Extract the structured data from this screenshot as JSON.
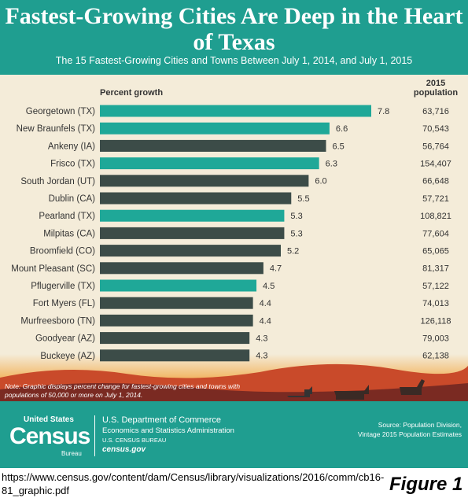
{
  "chart_data": {
    "type": "bar",
    "title": "Fastest-Growing Cities Are Deep in the Heart of Texas",
    "subtitle": "The 15 Fastest-Growing Cities and Towns Between July 1, 2014, and July 1, 2015",
    "categories": [
      "Georgetown (TX)",
      "New Braunfels (TX)",
      "Ankeny (IA)",
      "Frisco (TX)",
      "South Jordan (UT)",
      "Dublin (CA)",
      "Pearland (TX)",
      "Milpitas (CA)",
      "Broomfield (CO)",
      "Mount Pleasant (SC)",
      "Pflugerville (TX)",
      "Fort Myers (FL)",
      "Murfreesboro (TN)",
      "Goodyear (AZ)",
      "Buckeye (AZ)"
    ],
    "series": [
      {
        "name": "Percent growth",
        "values": [
          7.8,
          6.6,
          6.5,
          6.3,
          6.0,
          5.5,
          5.3,
          5.3,
          5.2,
          4.7,
          4.5,
          4.4,
          4.4,
          4.3,
          4.3
        ],
        "value_labels": [
          "7.8",
          "6.6",
          "6.5",
          "6.3",
          "6.0",
          "5.5",
          "5.3",
          "5.3",
          "5.2",
          "4.7",
          "4.5",
          "4.4",
          "4.4",
          "4.3",
          "4.3"
        ],
        "colors": [
          "#1fa898",
          "#1fa898",
          "#3c4c48",
          "#1fa898",
          "#3c4c48",
          "#3c4c48",
          "#1fa898",
          "#3c4c48",
          "#3c4c48",
          "#3c4c48",
          "#1fa898",
          "#3c4c48",
          "#3c4c48",
          "#3c4c48",
          "#3c4c48"
        ]
      }
    ],
    "population": {
      "name": "2015 population",
      "values": [
        63716,
        70543,
        56764,
        154407,
        66648,
        57721,
        108821,
        77604,
        65065,
        81317,
        57122,
        74013,
        126118,
        79003,
        62138
      ],
      "value_labels": [
        "63,716",
        "70,543",
        "56,764",
        "154,407",
        "66,648",
        "57,721",
        "108,821",
        "77,604",
        "65,065",
        "81,317",
        "57,122",
        "74,013",
        "126,118",
        "79,003",
        "62,138"
      ]
    },
    "note": "Note: Graphic displays percent change for fastest-growing cities and towns with populations of 50,000 or more on July 1, 2014."
  },
  "footer": {
    "logo": [
      "United States",
      "Census",
      "Bureau"
    ],
    "agency": [
      "U.S. Department of Commerce",
      "Economics and Statistics Administration",
      "U.S. CENSUS BUREAU",
      "census.gov"
    ],
    "source": [
      "Source: Population Division,",
      "Vintage 2015 Population Estimates"
    ]
  },
  "caption": {
    "url": "https://www.census.gov/content/dam/Census/library/visualizations/2016/comm/cb16-81_graphic.pdf",
    "figure": "Figure 1"
  }
}
